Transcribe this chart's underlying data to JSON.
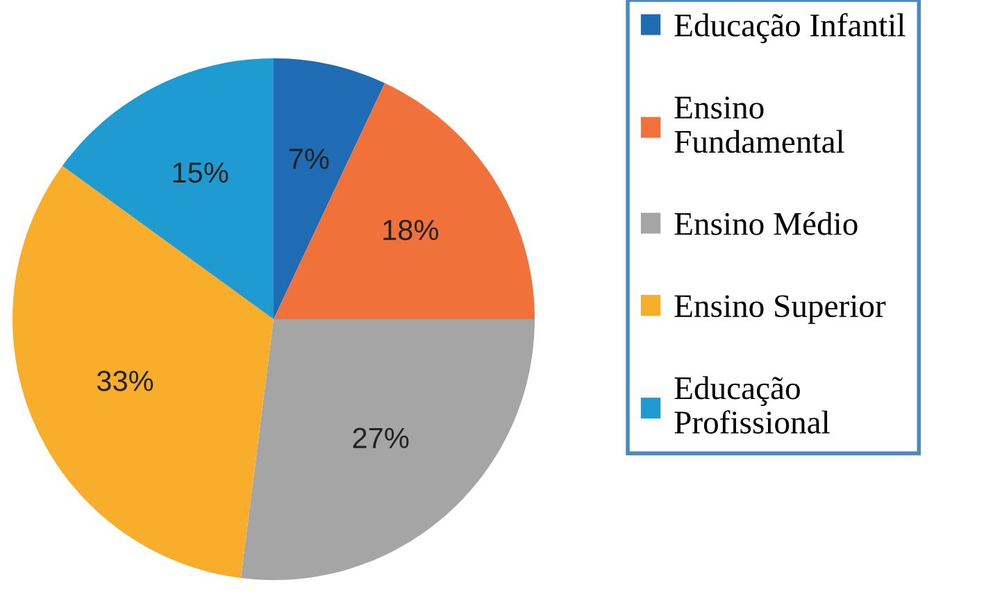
{
  "chart_data": {
    "type": "pie",
    "categories": [
      "Educação Infantil",
      "Ensino Fundamental",
      "Ensino Médio",
      "Ensino Superior",
      "Educação Profissional"
    ],
    "values": [
      7,
      18,
      27,
      33,
      15
    ],
    "colors": [
      "#1f6cb5",
      "#f0713a",
      "#a5a5a5",
      "#f9ae2b",
      "#1f9bd1"
    ],
    "value_labels": [
      "7%",
      "18%",
      "27%",
      "33%",
      "15%"
    ],
    "legend": "right"
  }
}
